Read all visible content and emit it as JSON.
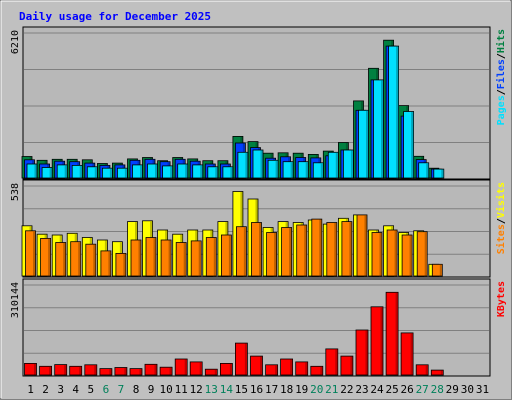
{
  "chart_data": {
    "type": "bar",
    "title": "Daily usage for December 2025",
    "days": [
      "1",
      "2",
      "3",
      "4",
      "5",
      "6",
      "7",
      "8",
      "9",
      "10",
      "11",
      "12",
      "13",
      "14",
      "15",
      "16",
      "17",
      "18",
      "19",
      "20",
      "21",
      "22",
      "23",
      "24",
      "25",
      "26",
      "27",
      "28",
      "29",
      "30",
      "31"
    ],
    "weekend_days": [
      "6",
      "7",
      "13",
      "14",
      "20",
      "21",
      "27",
      "28"
    ],
    "panels": [
      {
        "id": "hits",
        "ymax_label": "6210",
        "ymax": 6210,
        "labels": [
          "Pages",
          "/",
          "Files",
          "/",
          "Hits"
        ],
        "series": [
          {
            "name": "Hits",
            "color": "#008040",
            "values": [
              920,
              760,
              800,
              800,
              780,
              620,
              640,
              820,
              880,
              740,
              880,
              820,
              740,
              740,
              1780,
              1560,
              1060,
              1080,
              1060,
              1010,
              1150,
              1520,
              3300,
              4700,
              5900,
              3100,
              930,
              420,
              0,
              0,
              0
            ]
          },
          {
            "name": "Files",
            "color": "#0040ff",
            "values": [
              780,
              600,
              720,
              700,
              640,
              540,
              560,
              760,
              800,
              700,
              800,
              720,
              600,
              600,
              1500,
              1300,
              850,
              910,
              880,
              860,
              950,
              1200,
              2900,
              4200,
              5650,
              2650,
              790,
              380,
              0,
              0,
              0
            ]
          },
          {
            "name": "Pages",
            "color": "#00e0ff",
            "values": [
              600,
              450,
              560,
              540,
              480,
              420,
              420,
              560,
              600,
              520,
              600,
              560,
              480,
              480,
              1100,
              1200,
              760,
              700,
              700,
              650,
              1100,
              1200,
              2900,
              4200,
              5650,
              2850,
              650,
              380,
              0,
              0,
              0
            ]
          }
        ]
      },
      {
        "id": "visits",
        "ymax_label": "538",
        "ymax": 538,
        "labels": [
          "Sites",
          "/",
          "Visits"
        ],
        "series": [
          {
            "name": "Visits",
            "color": "#ffff00",
            "values": [
              300,
              250,
              245,
              255,
              230,
              215,
              205,
              325,
              330,
              275,
              250,
              275,
              275,
              325,
              505,
              460,
              290,
              325,
              320,
              335,
              310,
              345,
              365,
              275,
              300,
              260,
              270,
              70,
              0,
              0,
              0
            ]
          },
          {
            "name": "Sites",
            "color": "#ff8000",
            "values": [
              270,
              225,
              200,
              205,
              190,
              150,
              135,
              215,
              230,
              215,
              200,
              210,
              230,
              245,
              295,
              320,
              260,
              290,
              305,
              340,
              320,
              325,
              365,
              260,
              275,
              245,
              265,
              70,
              0,
              0,
              0
            ]
          }
        ]
      },
      {
        "id": "kbytes",
        "ymax_label": "310144",
        "ymax": 310144,
        "labels": [
          "KBytes"
        ],
        "series": [
          {
            "name": "KBytes",
            "color": "#ff0000",
            "values": [
              40000,
              30000,
              36000,
              30000,
              35000,
              22000,
              26000,
              22000,
              37000,
              27000,
              55000,
              45000,
              20000,
              40000,
              110000,
              65000,
              35000,
              55000,
              45000,
              30000,
              90000,
              65000,
              155000,
              235000,
              285000,
              145000,
              35000,
              17000,
              0,
              0,
              0
            ]
          }
        ]
      }
    ]
  }
}
